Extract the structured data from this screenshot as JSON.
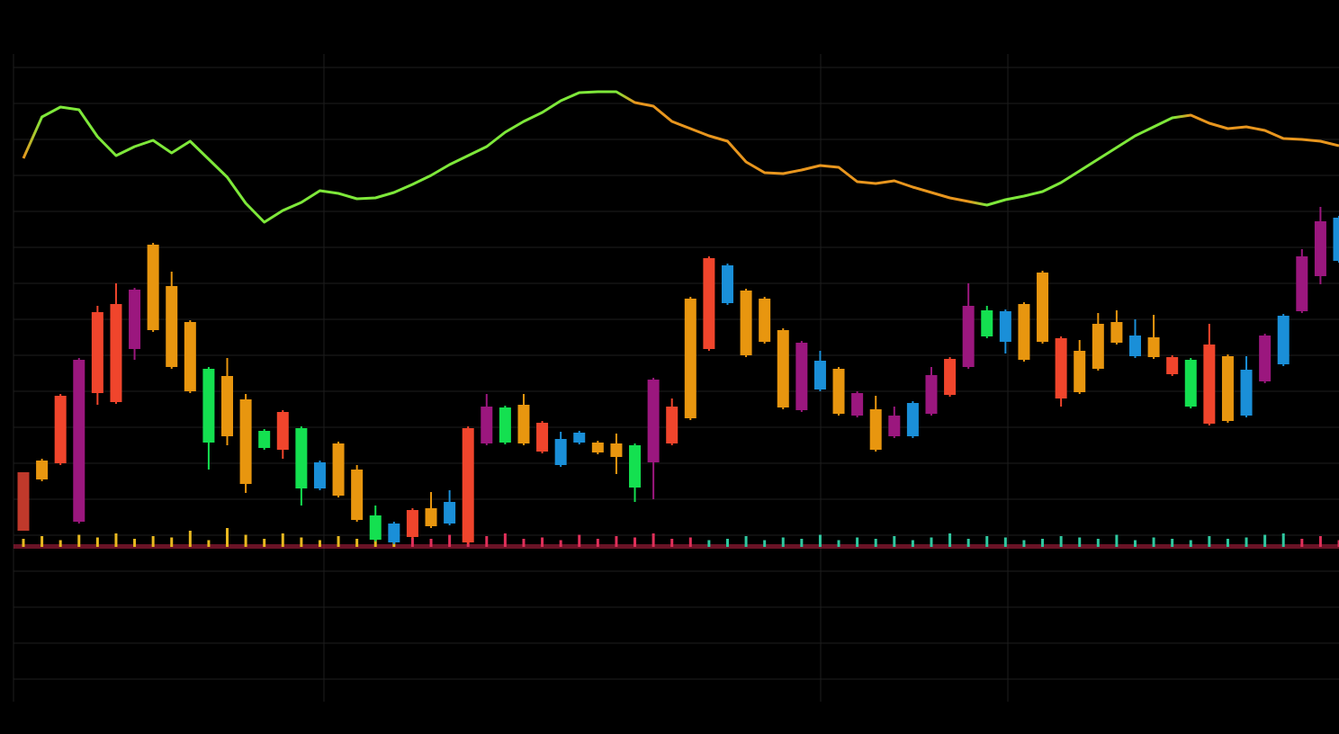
{
  "chart_data": {
    "type": "candlestick",
    "ylim": [
      0,
      715
    ],
    "yticks": [
      20,
      60,
      100,
      140,
      180,
      220,
      260,
      300,
      340,
      380,
      420,
      460,
      500,
      540,
      580,
      620,
      660,
      700
    ],
    "grid": true,
    "open": [
      185,
      242,
      260,
      195,
      338,
      328,
      387,
      408,
      367,
      340,
      283,
      290,
      237,
      277,
      275,
      232,
      232,
      224,
      197,
      175,
      172,
      178,
      190,
      193,
      172,
      282,
      283,
      282,
      273,
      258,
      283,
      272,
      267,
      233,
      261,
      282,
      310,
      387,
      438,
      380,
      395,
      322,
      319,
      342,
      315,
      313,
      275,
      290,
      290,
      315,
      336,
      367,
      401,
      395,
      375,
      395,
      332,
      339,
      365,
      394,
      379,
      378,
      359,
      323,
      304,
      307,
      313,
      351,
      370,
      429,
      468,
      485
    ],
    "close": [
      250,
      263,
      335,
      375,
      428,
      437,
      453,
      503,
      457,
      417,
      365,
      357,
      331,
      296,
      317,
      299,
      261,
      282,
      253,
      202,
      193,
      208,
      210,
      217,
      299,
      323,
      322,
      325,
      305,
      287,
      294,
      283,
      282,
      280,
      353,
      323,
      443,
      488,
      480,
      452,
      443,
      408,
      394,
      374,
      365,
      338,
      320,
      313,
      327,
      358,
      376,
      435,
      430,
      429,
      437,
      472,
      399,
      385,
      415,
      417,
      402,
      400,
      378,
      375,
      392,
      379,
      364,
      402,
      424,
      490,
      529,
      533
    ],
    "high": [
      250,
      265,
      337,
      377,
      435,
      460,
      455,
      505,
      473,
      419,
      367,
      377,
      337,
      298,
      319,
      301,
      263,
      284,
      258,
      213,
      195,
      210,
      228,
      230,
      301,
      337,
      324,
      337,
      307,
      295,
      296,
      285,
      293,
      282,
      355,
      332,
      445,
      490,
      482,
      454,
      445,
      410,
      396,
      385,
      367,
      340,
      335,
      323,
      329,
      367,
      378,
      460,
      435,
      431,
      439,
      474,
      401,
      397,
      427,
      430,
      420,
      425,
      380,
      377,
      415,
      381,
      379,
      404,
      426,
      498,
      545,
      535
    ],
    "low": [
      185,
      240,
      258,
      193,
      325,
      326,
      375,
      406,
      365,
      338,
      253,
      280,
      227,
      275,
      265,
      213,
      230,
      222,
      195,
      173,
      170,
      176,
      188,
      191,
      170,
      280,
      281,
      280,
      271,
      256,
      281,
      270,
      248,
      217,
      220,
      280,
      308,
      385,
      436,
      378,
      393,
      320,
      317,
      340,
      313,
      311,
      273,
      288,
      288,
      313,
      334,
      365,
      399,
      382,
      373,
      393,
      323,
      337,
      363,
      392,
      377,
      376,
      357,
      321,
      302,
      305,
      311,
      349,
      368,
      427,
      459,
      483
    ],
    "colors": [
      "#c0392b",
      "#e8960f",
      "#f0452c",
      "#9b177e",
      "#f0452c",
      "#f0452c",
      "#9b177e",
      "#e8960f",
      "#e8960f",
      "#e8960f",
      "#14e050",
      "#e8960f",
      "#e8960f",
      "#14e050",
      "#f0452c",
      "#14e050",
      "#1a8fd8",
      "#e8960f",
      "#e8960f",
      "#14e050",
      "#1a8fd8",
      "#f0452c",
      "#e8960f",
      "#1a8fd8",
      "#f0452c",
      "#9b177e",
      "#14e050",
      "#e8960f",
      "#f0452c",
      "#1a8fd8",
      "#1a8fd8",
      "#e8960f",
      "#e8960f",
      "#14e050",
      "#9b177e",
      "#f0452c",
      "#e8960f",
      "#f0452c",
      "#1a8fd8",
      "#e8960f",
      "#e8960f",
      "#e8960f",
      "#9b177e",
      "#1a8fd8",
      "#e8960f",
      "#9b177e",
      "#e8960f",
      "#9b177e",
      "#1a8fd8",
      "#9b177e",
      "#f0452c",
      "#9b177e",
      "#14e050",
      "#1a8fd8",
      "#e8960f",
      "#e8960f",
      "#f0452c",
      "#e8960f",
      "#e8960f",
      "#e8960f",
      "#1a8fd8",
      "#e8960f",
      "#f0452c",
      "#14e050",
      "#f0452c",
      "#e8960f",
      "#1a8fd8",
      "#9b177e",
      "#1a8fd8",
      "#9b177e",
      "#9b177e",
      "#1a8fd8"
    ],
    "overlay": {
      "type": "line",
      "values": [
        599,
        645,
        656,
        653,
        623,
        602,
        612,
        619,
        605,
        618,
        598,
        578,
        549,
        528,
        541,
        550,
        563,
        560,
        554,
        555,
        561,
        570,
        580,
        592,
        602,
        612,
        628,
        640,
        650,
        663,
        672,
        673,
        673,
        661,
        657,
        640,
        632,
        624,
        618,
        595,
        583,
        582,
        586,
        591,
        589,
        573,
        571,
        574,
        567,
        561,
        555,
        551,
        547,
        553,
        557,
        562,
        572,
        585,
        598,
        611,
        624,
        634,
        644,
        647,
        638,
        632,
        634,
        630,
        621,
        620,
        618,
        613
      ],
      "colors": [
        "#e8961e",
        "#7ee83a",
        "#7ee83a",
        "#7ee83a",
        "#7ee83a",
        "#7ee83a",
        "#7ee83a",
        "#7ee83a",
        "#7ee83a",
        "#7ee83a",
        "#7ee83a",
        "#7ee83a",
        "#7ee83a",
        "#7ee83a",
        "#7ee83a",
        "#7ee83a",
        "#7ee83a",
        "#7ee83a",
        "#7ee83a",
        "#7ee83a",
        "#7ee83a",
        "#7ee83a",
        "#7ee83a",
        "#7ee83a",
        "#7ee83a",
        "#7ee83a",
        "#7ee83a",
        "#7ee83a",
        "#7ee83a",
        "#7ee83a",
        "#7ee83a",
        "#7ee83a",
        "#7ee83a",
        "#e8961e",
        "#e8961e",
        "#e8961e",
        "#e8961e",
        "#e8961e",
        "#e8961e",
        "#e8961e",
        "#e8961e",
        "#e8961e",
        "#e8961e",
        "#e8961e",
        "#e8961e",
        "#e8961e",
        "#e8961e",
        "#e8961e",
        "#e8961e",
        "#e8961e",
        "#e8961e",
        "#e8961e",
        "#7ee83a",
        "#7ee83a",
        "#7ee83a",
        "#7ee83a",
        "#7ee83a",
        "#7ee83a",
        "#7ee83a",
        "#7ee83a",
        "#7ee83a",
        "#7ee83a",
        "#7ee83a",
        "#e8961e",
        "#e8961e",
        "#e8961e",
        "#e8961e",
        "#e8961e",
        "#e8961e",
        "#e8961e",
        "#e8961e",
        "#e8961e"
      ]
    },
    "volume": {
      "type": "bar",
      "ylim": [
        0,
        40
      ],
      "values": [
        6,
        8,
        5,
        9,
        7,
        10,
        6,
        8,
        7,
        12,
        5,
        14,
        9,
        6,
        10,
        7,
        5,
        8,
        6,
        9,
        4,
        7,
        6,
        9,
        12,
        8,
        10,
        6,
        7,
        5,
        9,
        6,
        8,
        7,
        10,
        6,
        7,
        5,
        6,
        8,
        5,
        7,
        6,
        9,
        5,
        7,
        6,
        8,
        5,
        7,
        10,
        6,
        8,
        7,
        5,
        6,
        8,
        7,
        6,
        9,
        5,
        7,
        6,
        5,
        8,
        6,
        7,
        9,
        10,
        6,
        8,
        5
      ],
      "colors": [
        "#e8b820",
        "#e8b820",
        "#e8b820",
        "#e8b820",
        "#e8b820",
        "#e8b820",
        "#e8b820",
        "#e8b820",
        "#e8b820",
        "#e8b820",
        "#e8b820",
        "#e8b820",
        "#e8b820",
        "#e8b820",
        "#e8b820",
        "#e8b820",
        "#e8b820",
        "#e8b820",
        "#e8b820",
        "#e8b820",
        "#e8b820",
        "#e0305a",
        "#e0305a",
        "#e0305a",
        "#e0305a",
        "#e0305a",
        "#e0305a",
        "#e0305a",
        "#e0305a",
        "#e0305a",
        "#e0305a",
        "#e0305a",
        "#e0305a",
        "#e0305a",
        "#e0305a",
        "#e0305a",
        "#e0305a",
        "#30c8a0",
        "#30c8a0",
        "#30c8a0",
        "#30c8a0",
        "#30c8a0",
        "#30c8a0",
        "#30c8a0",
        "#30c8a0",
        "#30c8a0",
        "#30c8a0",
        "#30c8a0",
        "#30c8a0",
        "#30c8a0",
        "#30c8a0",
        "#30c8a0",
        "#30c8a0",
        "#30c8a0",
        "#30c8a0",
        "#30c8a0",
        "#30c8a0",
        "#30c8a0",
        "#30c8a0",
        "#30c8a0",
        "#30c8a0",
        "#30c8a0",
        "#30c8a0",
        "#30c8a0",
        "#30c8a0",
        "#30c8a0",
        "#30c8a0",
        "#30c8a0",
        "#30c8a0",
        "#e0305a",
        "#e0305a",
        "#e0305a"
      ]
    }
  }
}
